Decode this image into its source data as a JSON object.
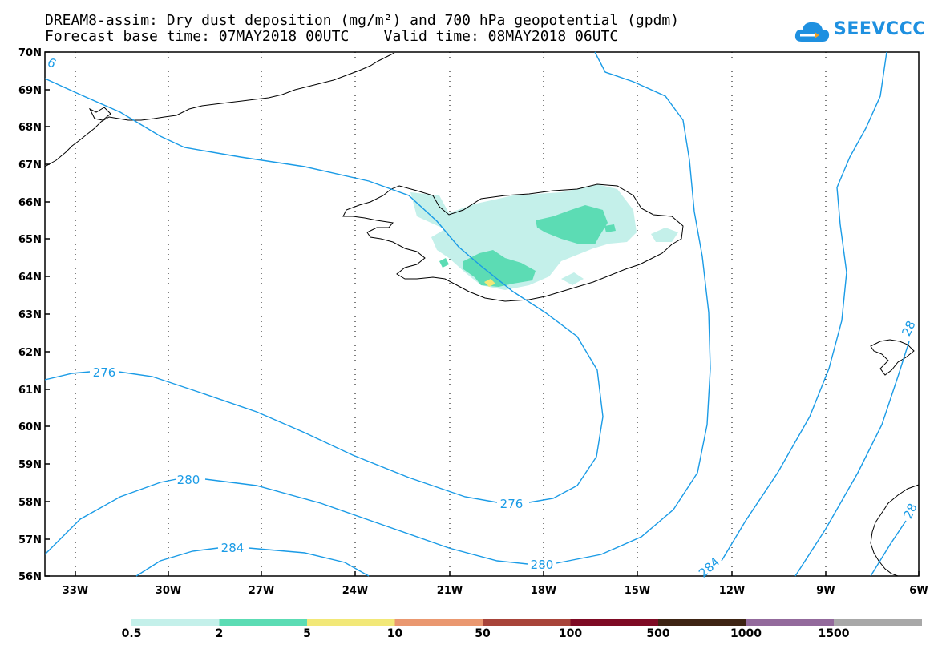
{
  "header": {
    "line1": "DREAM8-assim: Dry dust deposition (mg/m²) and 700 hPa geopotential (gpdm)",
    "line2": "Forecast base time: 07MAY2018 00UTC    Valid time: 08MAY2018 06UTC"
  },
  "logo": {
    "text": "SEEVCCC",
    "icon": "cloud-icon",
    "color": "#1e90e0"
  },
  "axes": {
    "lat_labels": [
      "70N",
      "69N",
      "68N",
      "67N",
      "66N",
      "65N",
      "64N",
      "63N",
      "62N",
      "61N",
      "60N",
      "59N",
      "58N",
      "57N",
      "56N"
    ],
    "lon_labels": [
      "33W",
      "30W",
      "27W",
      "24W",
      "21W",
      "18W",
      "15W",
      "12W",
      "9W",
      "6W"
    ]
  },
  "contours": {
    "color": "#1a9be6",
    "labels": [
      "276",
      "280",
      "284",
      "276",
      "280",
      "284",
      "6",
      "28",
      "28"
    ]
  },
  "colorbar": {
    "colors": [
      "#c4f0ea",
      "#5cdcb4",
      "#f2e878",
      "#ea9870",
      "#a8443a",
      "#7e0a24",
      "#3e2414",
      "#936a9c",
      "#a8a8a8"
    ],
    "labels": [
      "0.5",
      "2",
      "5",
      "10",
      "50",
      "100",
      "500",
      "1000",
      "1500"
    ]
  }
}
